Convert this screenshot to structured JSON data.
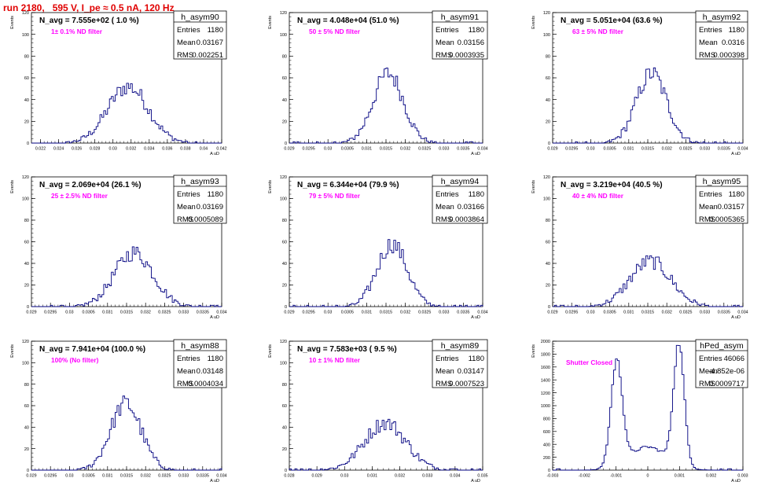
{
  "page_title": "run 2180,   595 V, I_pe ≈ 0.5 nA, 120 Hz",
  "colors": {
    "histogram": "#000080",
    "filter_label": "#ff00ff",
    "title": "#e00000",
    "axis": "#000000"
  },
  "stats_labels": {
    "entries": "Entries",
    "mean": "Mean",
    "rms": "RMS"
  },
  "chart_data": [
    {
      "type": "histogram",
      "name": "h_asym90",
      "navg": "N_avg = 7.555e+02 ( 1.0 %)",
      "filter": "1± 0.1% ND filter",
      "entries": "1180",
      "mean": "0.03167",
      "rms": "0.002251",
      "ylabel": "Events",
      "xlabel": "A_uD",
      "xlim": [
        0.021,
        0.042
      ],
      "ylim": [
        0,
        120
      ],
      "xticks": [
        "0.022",
        "0.024",
        "0.026",
        "0.028",
        "0.03",
        "0.032",
        "0.034",
        "0.036",
        "0.038",
        "0.04",
        "0.042"
      ],
      "xtick_values": [
        0.022,
        0.024,
        0.026,
        0.028,
        0.03,
        0.032,
        0.034,
        0.036,
        0.038,
        0.04,
        0.042
      ],
      "yticks": [
        0,
        20,
        40,
        60,
        80,
        100,
        120
      ],
      "gauss": [
        0.03167,
        0.002251,
        52
      ],
      "peaks": []
    },
    {
      "type": "histogram",
      "name": "h_asym91",
      "navg": "N_avg = 4.048e+04 (51.0 %)",
      "filter": "50 ± 5% ND filter",
      "entries": "1180",
      "mean": "0.03156",
      "rms": "0.0003935",
      "ylabel": "Events",
      "xlabel": "A_uD",
      "xlim": [
        0.029,
        0.034
      ],
      "ylim": [
        0,
        120
      ],
      "xticks": [
        "0.029",
        "0.0295",
        "0.03",
        "0.0305",
        "0.031",
        "0.0315",
        "0.032",
        "0.0325",
        "0.033",
        "0.0335",
        "0.034"
      ],
      "xtick_values": [
        0.029,
        0.0295,
        0.03,
        0.0305,
        0.031,
        0.0315,
        0.032,
        0.0325,
        0.033,
        0.0335,
        0.034
      ],
      "yticks": [
        0,
        20,
        40,
        60,
        80,
        100,
        120
      ],
      "gauss": [
        0.03156,
        0.0003935,
        64
      ],
      "peaks": []
    },
    {
      "type": "histogram",
      "name": "h_asym92",
      "navg": "N_avg = 5.051e+04 (63.6 %)",
      "filter": "63 ± 5% ND filter",
      "entries": "1180",
      "mean": "0.0316",
      "rms": "0.000398",
      "ylabel": "Events",
      "xlabel": "A_uD",
      "xlim": [
        0.029,
        0.034
      ],
      "ylim": [
        0,
        120
      ],
      "xticks": [
        "0.029",
        "0.0295",
        "0.03",
        "0.0305",
        "0.031",
        "0.0315",
        "0.032",
        "0.0325",
        "0.033",
        "0.0335",
        "0.034"
      ],
      "xtick_values": [
        0.029,
        0.0295,
        0.03,
        0.0305,
        0.031,
        0.0315,
        0.032,
        0.0325,
        0.033,
        0.0335,
        0.034
      ],
      "yticks": [
        0,
        20,
        40,
        60,
        80,
        100,
        120
      ],
      "gauss": [
        0.0316,
        0.000398,
        64
      ],
      "peaks": []
    },
    {
      "type": "histogram",
      "name": "h_asym93",
      "navg": "N_avg = 2.069e+04 (26.1 %)",
      "filter": "25 ± 2.5% ND filter",
      "entries": "1180",
      "mean": "0.03169",
      "rms": "0.0005089",
      "ylabel": "Events",
      "xlabel": "A_uD",
      "xlim": [
        0.029,
        0.034
      ],
      "ylim": [
        0,
        120
      ],
      "xticks": [
        "0.029",
        "0.0295",
        "0.03",
        "0.0305",
        "0.031",
        "0.0315",
        "0.032",
        "0.0325",
        "0.033",
        "0.0335",
        "0.034"
      ],
      "xtick_values": [
        0.029,
        0.0295,
        0.03,
        0.0305,
        0.031,
        0.0315,
        0.032,
        0.0325,
        0.033,
        0.0335,
        0.034
      ],
      "yticks": [
        0,
        20,
        40,
        60,
        80,
        100,
        120
      ],
      "gauss": [
        0.03169,
        0.0005089,
        50
      ],
      "peaks": []
    },
    {
      "type": "histogram",
      "name": "h_asym94",
      "navg": "N_avg = 6.344e+04 (79.9 %)",
      "filter": "79 ± 5% ND filter",
      "entries": "1180",
      "mean": "0.03166",
      "rms": "0.0003864",
      "ylabel": "Events",
      "xlabel": "A_uD",
      "xlim": [
        0.029,
        0.034
      ],
      "ylim": [
        0,
        120
      ],
      "xticks": [
        "0.029",
        "0.0295",
        "0.03",
        "0.0305",
        "0.031",
        "0.0315",
        "0.032",
        "0.0325",
        "0.033",
        "0.0335",
        "0.034"
      ],
      "xtick_values": [
        0.029,
        0.0295,
        0.03,
        0.0305,
        0.031,
        0.0315,
        0.032,
        0.0325,
        0.033,
        0.0335,
        0.034
      ],
      "yticks": [
        0,
        20,
        40,
        60,
        80,
        100,
        120
      ],
      "gauss": [
        0.03166,
        0.0003864,
        58
      ],
      "peaks": []
    },
    {
      "type": "histogram",
      "name": "h_asym95",
      "navg": "N_avg = 3.219e+04 (40.5 %)",
      "filter": "40 ± 4% ND filter",
      "entries": "1180",
      "mean": "0.03157",
      "rms": "0.0005365",
      "ylabel": "Events",
      "xlabel": "A_uD",
      "xlim": [
        0.029,
        0.034
      ],
      "ylim": [
        0,
        120
      ],
      "xticks": [
        "0.029",
        "0.0295",
        "0.03",
        "0.0305",
        "0.031",
        "0.0315",
        "0.032",
        "0.0325",
        "0.033",
        "0.0335",
        "0.034"
      ],
      "xtick_values": [
        0.029,
        0.0295,
        0.03,
        0.0305,
        0.031,
        0.0315,
        0.032,
        0.0325,
        0.033,
        0.0335,
        0.034
      ],
      "yticks": [
        0,
        20,
        40,
        60,
        80,
        100,
        120
      ],
      "gauss": [
        0.03157,
        0.0005365,
        42
      ],
      "peaks": []
    },
    {
      "type": "histogram",
      "name": "h_asym88",
      "navg": "N_avg = 7.941e+04 (100.0 %)",
      "filter": "100% (No filter)",
      "entries": "1180",
      "mean": "0.03148",
      "rms": "0.0004034",
      "ylabel": "Events",
      "xlabel": "A_uD",
      "xlim": [
        0.029,
        0.034
      ],
      "ylim": [
        0,
        120
      ],
      "xticks": [
        "0.029",
        "0.0295",
        "0.03",
        "0.0305",
        "0.031",
        "0.0315",
        "0.032",
        "0.0325",
        "0.033",
        "0.0335",
        "0.034"
      ],
      "xtick_values": [
        0.029,
        0.0295,
        0.03,
        0.0305,
        0.031,
        0.0315,
        0.032,
        0.0325,
        0.033,
        0.0335,
        0.034
      ],
      "yticks": [
        0,
        20,
        40,
        60,
        80,
        100,
        120
      ],
      "gauss": [
        0.03148,
        0.0004034,
        62
      ],
      "peaks": []
    },
    {
      "type": "histogram",
      "name": "h_asym89",
      "navg": "N_avg = 7.583e+03 ( 9.5 %)",
      "filter": "10 ± 1% ND filter",
      "entries": "1180",
      "mean": "0.03147",
      "rms": "0.0007523",
      "ylabel": "Events",
      "xlabel": "A_uD",
      "xlim": [
        0.028,
        0.035
      ],
      "ylim": [
        0,
        120
      ],
      "xticks": [
        "0.028",
        "0.029",
        "0.03",
        "0.031",
        "0.032",
        "0.033",
        "0.034",
        "0.035"
      ],
      "xtick_values": [
        0.028,
        0.029,
        0.03,
        0.031,
        0.032,
        0.033,
        0.034,
        0.035
      ],
      "yticks": [
        0,
        20,
        40,
        60,
        80,
        100,
        120
      ],
      "gauss": [
        0.03147,
        0.0007523,
        44
      ],
      "peaks": []
    },
    {
      "type": "histogram",
      "name": "hPed_asym",
      "navg": "",
      "filter": "Shutter Closed",
      "entries": "46066",
      "mean": "-4.852e-06",
      "rms": "0.0009717",
      "ylabel": "Events",
      "xlabel": "A_uD",
      "xlim": [
        -0.003,
        0.003
      ],
      "ylim": [
        0,
        2000
      ],
      "xticks": [
        "-0.003",
        "-0.002",
        "-0.001",
        "0",
        "0.001",
        "0.002",
        "0.003"
      ],
      "xtick_values": [
        -0.003,
        -0.002,
        -0.001,
        0,
        0.001,
        0.002,
        0.003
      ],
      "yticks": [
        0,
        200,
        400,
        600,
        800,
        1000,
        1200,
        1400,
        1600,
        1800,
        2000
      ],
      "gauss": [
        0,
        0.0005,
        0
      ],
      "peaks": [
        [
          -0.00098,
          0.00018,
          1620
        ],
        [
          0.00098,
          0.00017,
          1880
        ],
        [
          0.0,
          0.0006,
          360
        ]
      ]
    }
  ]
}
